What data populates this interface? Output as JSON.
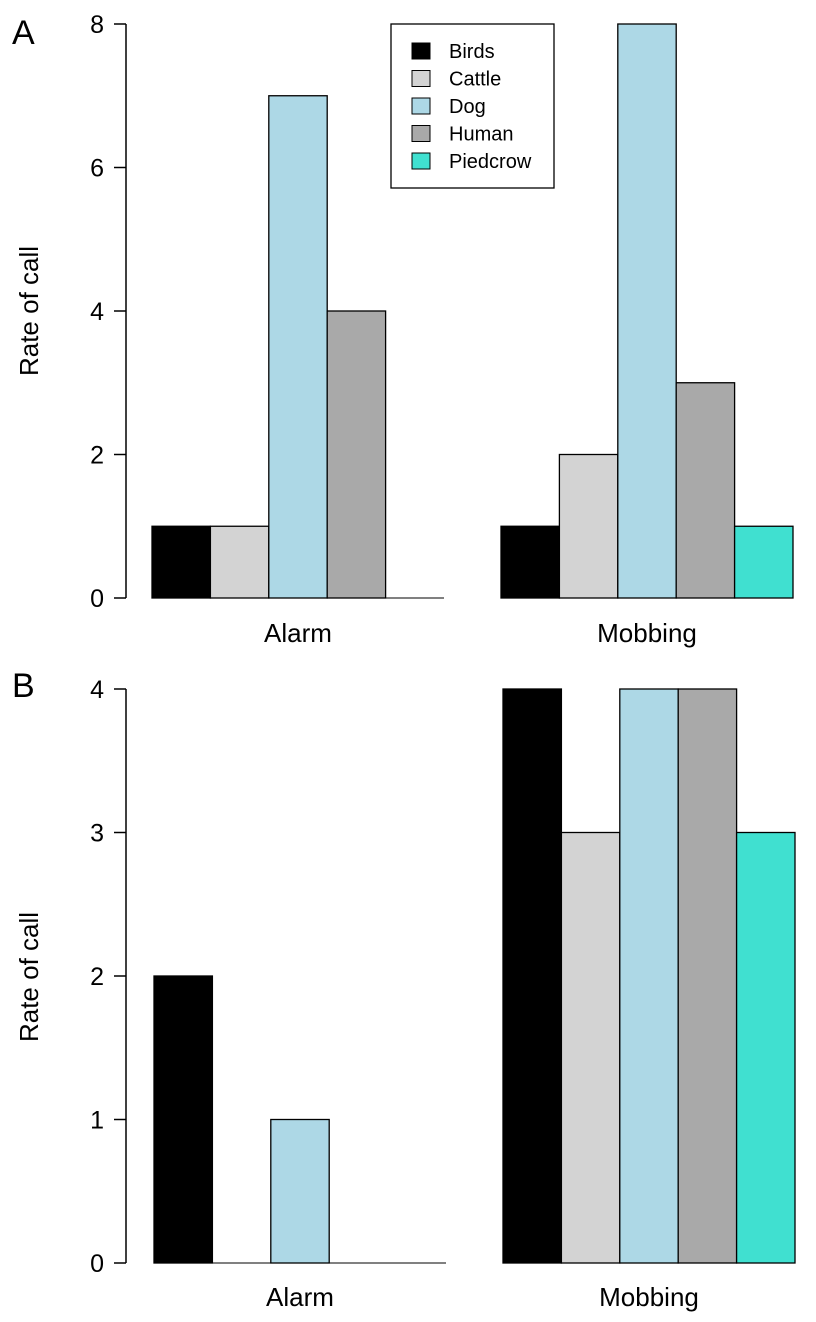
{
  "colors": {
    "Birds": "#000000",
    "Cattle": "#d3d3d3",
    "Dog": "#add8e6",
    "Human": "#a9a9a9",
    "Piedcrow": "#40e0d0"
  },
  "chart_data": [
    {
      "type": "bar",
      "panel": "A",
      "ylabel": "Rate of call",
      "ylim": [
        0,
        8
      ],
      "yticks": [
        0,
        2,
        4,
        6,
        8
      ],
      "categories": [
        "Alarm",
        "Mobbing"
      ],
      "legend": {
        "placement": "top-center",
        "entries": [
          "Birds",
          "Cattle",
          "Dog",
          "Human",
          "Piedcrow"
        ]
      },
      "series": [
        {
          "name": "Birds",
          "values": [
            1,
            1
          ]
        },
        {
          "name": "Cattle",
          "values": [
            1,
            2
          ]
        },
        {
          "name": "Dog",
          "values": [
            7,
            8
          ]
        },
        {
          "name": "Human",
          "values": [
            4,
            3
          ]
        },
        {
          "name": "Piedcrow",
          "values": [
            0,
            1
          ]
        }
      ]
    },
    {
      "type": "bar",
      "panel": "B",
      "ylabel": "Rate of call",
      "ylim": [
        0,
        4
      ],
      "yticks": [
        0,
        1,
        2,
        3,
        4
      ],
      "categories": [
        "Alarm",
        "Mobbing"
      ],
      "series": [
        {
          "name": "Birds",
          "values": [
            2,
            4
          ]
        },
        {
          "name": "Cattle",
          "values": [
            0,
            3
          ]
        },
        {
          "name": "Dog",
          "values": [
            1,
            4
          ]
        },
        {
          "name": "Human",
          "values": [
            0,
            4
          ]
        },
        {
          "name": "Piedcrow",
          "values": [
            0,
            3
          ]
        }
      ]
    }
  ]
}
